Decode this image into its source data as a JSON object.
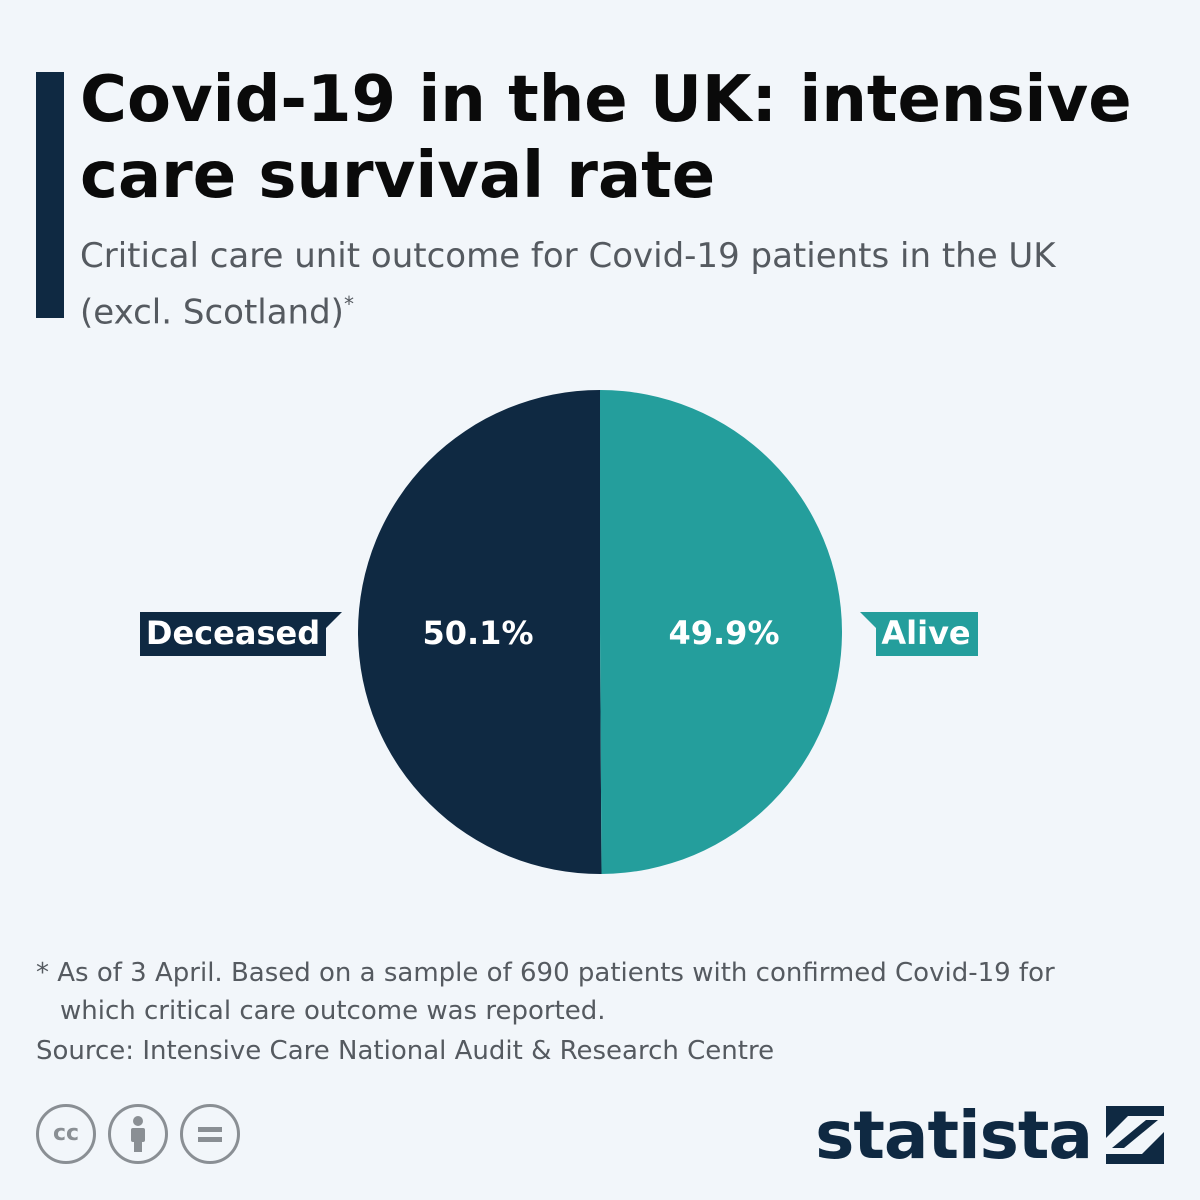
{
  "header": {
    "title": "Covid-19 in the UK: intensive care survival rate",
    "subtitle": "Critical care unit outcome for Covid-19 patients in the UK (excl. Scotland)",
    "subtitle_mark": "*"
  },
  "colors": {
    "accent": "#0f2942",
    "deceased": "#0f2942",
    "alive": "#249e9c",
    "background": "#f2f6fa"
  },
  "chart_data": {
    "type": "pie",
    "slices": [
      {
        "label": "Deceased",
        "value": 50.1,
        "display": "50.1%",
        "color": "#0f2942"
      },
      {
        "label": "Alive",
        "value": 49.9,
        "display": "49.9%",
        "color": "#249e9c"
      }
    ]
  },
  "footer": {
    "note_line1": "* As of 3 April. Based on a sample of 690 patients with confirmed Covid-19 for",
    "note_line2": "which critical care outcome was reported.",
    "source": "Source: Intensive Care National Audit & Research Centre"
  },
  "license_icons": [
    "creative-commons-icon",
    "attribution-icon",
    "no-derivatives-icon"
  ],
  "brand": {
    "name": "statista"
  }
}
